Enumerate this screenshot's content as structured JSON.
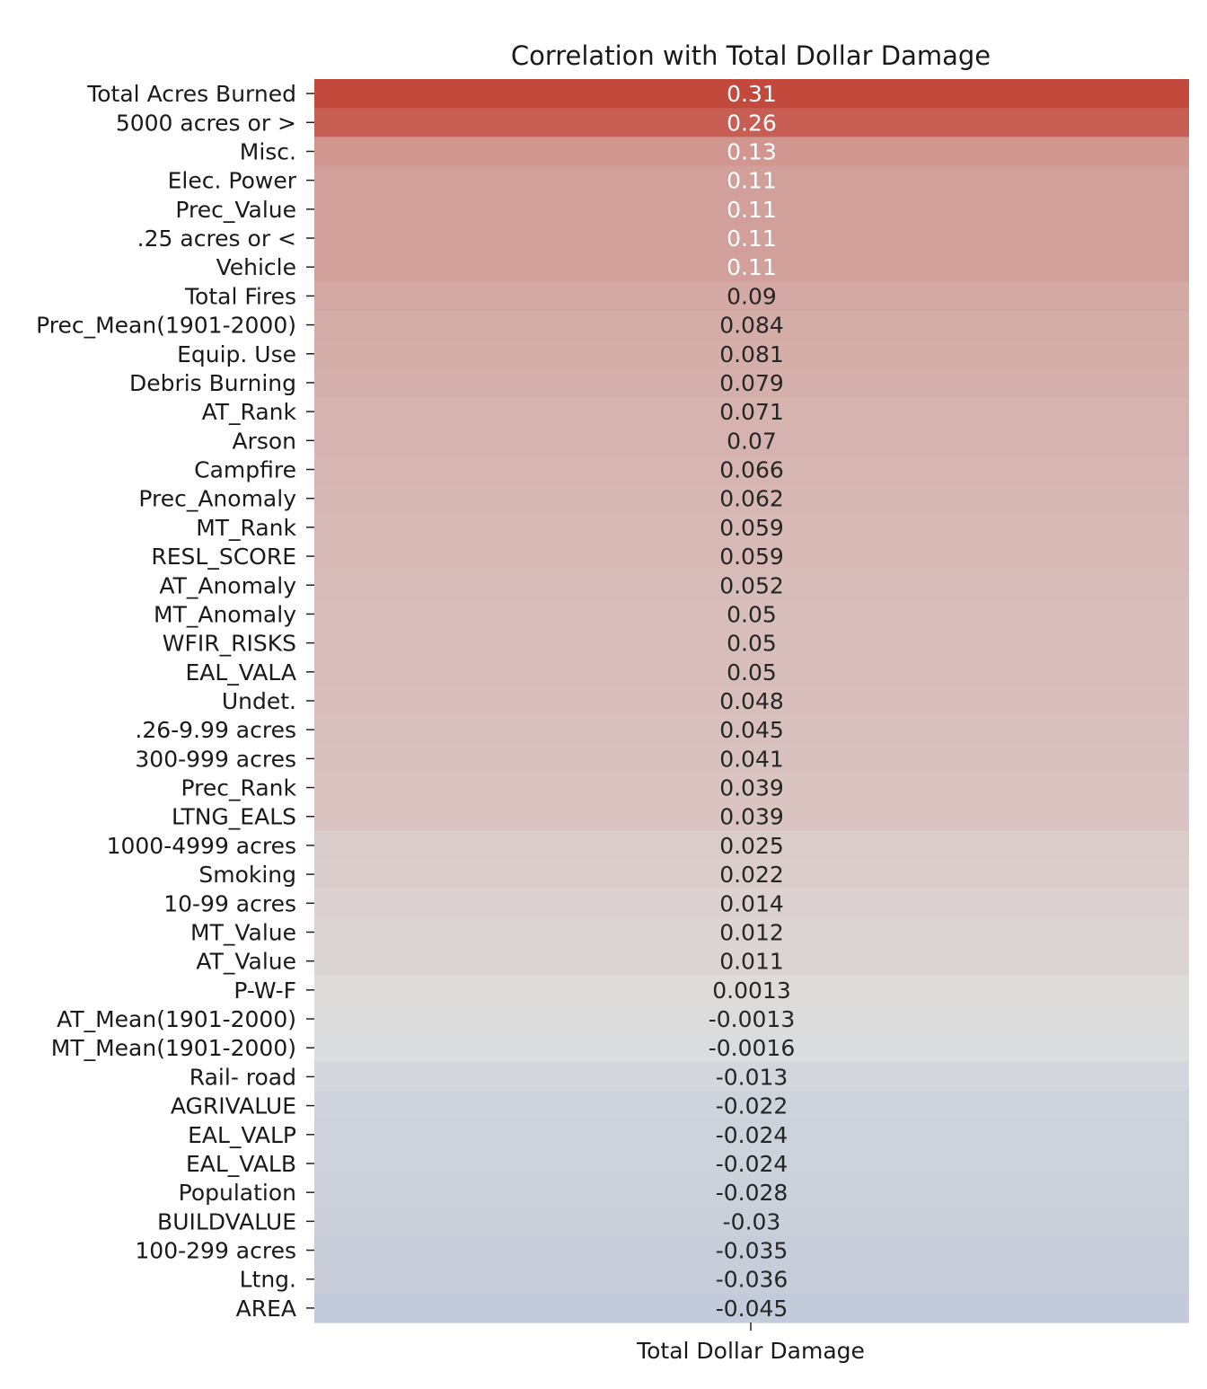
{
  "chart_data": {
    "type": "heatmap",
    "title": "Correlation with Total Dollar Damage",
    "column": "Total Dollar Damage",
    "rows": [
      {
        "label": "Total Acres Burned",
        "value": 0.31,
        "text": "0.31"
      },
      {
        "label": "5000 acres or >",
        "value": 0.26,
        "text": "0.26"
      },
      {
        "label": "Misc.",
        "value": 0.13,
        "text": "0.13"
      },
      {
        "label": "Elec. Power",
        "value": 0.11,
        "text": "0.11"
      },
      {
        "label": "Prec_Value",
        "value": 0.11,
        "text": "0.11"
      },
      {
        "label": ".25 acres or <",
        "value": 0.11,
        "text": "0.11"
      },
      {
        "label": "Vehicle",
        "value": 0.11,
        "text": "0.11"
      },
      {
        "label": "Total Fires",
        "value": 0.09,
        "text": "0.09"
      },
      {
        "label": "Prec_Mean(1901-2000)",
        "value": 0.084,
        "text": "0.084"
      },
      {
        "label": "Equip. Use",
        "value": 0.081,
        "text": "0.081"
      },
      {
        "label": "Debris Burning",
        "value": 0.079,
        "text": "0.079"
      },
      {
        "label": "AT_Rank",
        "value": 0.071,
        "text": "0.071"
      },
      {
        "label": "Arson",
        "value": 0.07,
        "text": "0.07"
      },
      {
        "label": "Campfire",
        "value": 0.066,
        "text": "0.066"
      },
      {
        "label": "Prec_Anomaly",
        "value": 0.062,
        "text": "0.062"
      },
      {
        "label": "MT_Rank",
        "value": 0.059,
        "text": "0.059"
      },
      {
        "label": "RESL_SCORE",
        "value": 0.059,
        "text": "0.059"
      },
      {
        "label": "AT_Anomaly",
        "value": 0.052,
        "text": "0.052"
      },
      {
        "label": "MT_Anomaly",
        "value": 0.05,
        "text": "0.05"
      },
      {
        "label": "WFIR_RISKS",
        "value": 0.05,
        "text": "0.05"
      },
      {
        "label": "EAL_VALA",
        "value": 0.05,
        "text": "0.05"
      },
      {
        "label": "Undet.",
        "value": 0.048,
        "text": "0.048"
      },
      {
        "label": ".26-9.99 acres",
        "value": 0.045,
        "text": "0.045"
      },
      {
        "label": "300-999 acres",
        "value": 0.041,
        "text": "0.041"
      },
      {
        "label": "Prec_Rank",
        "value": 0.039,
        "text": "0.039"
      },
      {
        "label": "LTNG_EALS",
        "value": 0.039,
        "text": "0.039"
      },
      {
        "label": "1000-4999 acres",
        "value": 0.025,
        "text": "0.025"
      },
      {
        "label": "Smoking",
        "value": 0.022,
        "text": "0.022"
      },
      {
        "label": "10-99 acres",
        "value": 0.014,
        "text": "0.014"
      },
      {
        "label": "MT_Value",
        "value": 0.012,
        "text": "0.012"
      },
      {
        "label": "AT_Value",
        "value": 0.011,
        "text": "0.011"
      },
      {
        "label": "P-W-F",
        "value": 0.0013,
        "text": "0.0013"
      },
      {
        "label": "AT_Mean(1901-2000)",
        "value": -0.0013,
        "text": "-0.0013"
      },
      {
        "label": "MT_Mean(1901-2000)",
        "value": -0.0016,
        "text": "-0.0016"
      },
      {
        "label": "Rail- road",
        "value": -0.013,
        "text": "-0.013"
      },
      {
        "label": "AGRIVALUE",
        "value": -0.022,
        "text": "-0.022"
      },
      {
        "label": "EAL_VALP",
        "value": -0.024,
        "text": "-0.024"
      },
      {
        "label": "EAL_VALB",
        "value": -0.024,
        "text": "-0.024"
      },
      {
        "label": "Population",
        "value": -0.028,
        "text": "-0.028"
      },
      {
        "label": "BUILDVALUE",
        "value": -0.03,
        "text": "-0.03"
      },
      {
        "label": "100-299 acres",
        "value": -0.035,
        "text": "-0.035"
      },
      {
        "label": "Ltng.",
        "value": -0.036,
        "text": "-0.036"
      },
      {
        "label": "AREA",
        "value": -0.045,
        "text": "-0.045"
      }
    ],
    "color_scale": {
      "min": -0.35,
      "center": 0.0,
      "max": 0.35,
      "low_color": "#4a70c4",
      "mid_color": "#dddddd",
      "high_color": "#c0392b"
    },
    "colorbar": false
  }
}
